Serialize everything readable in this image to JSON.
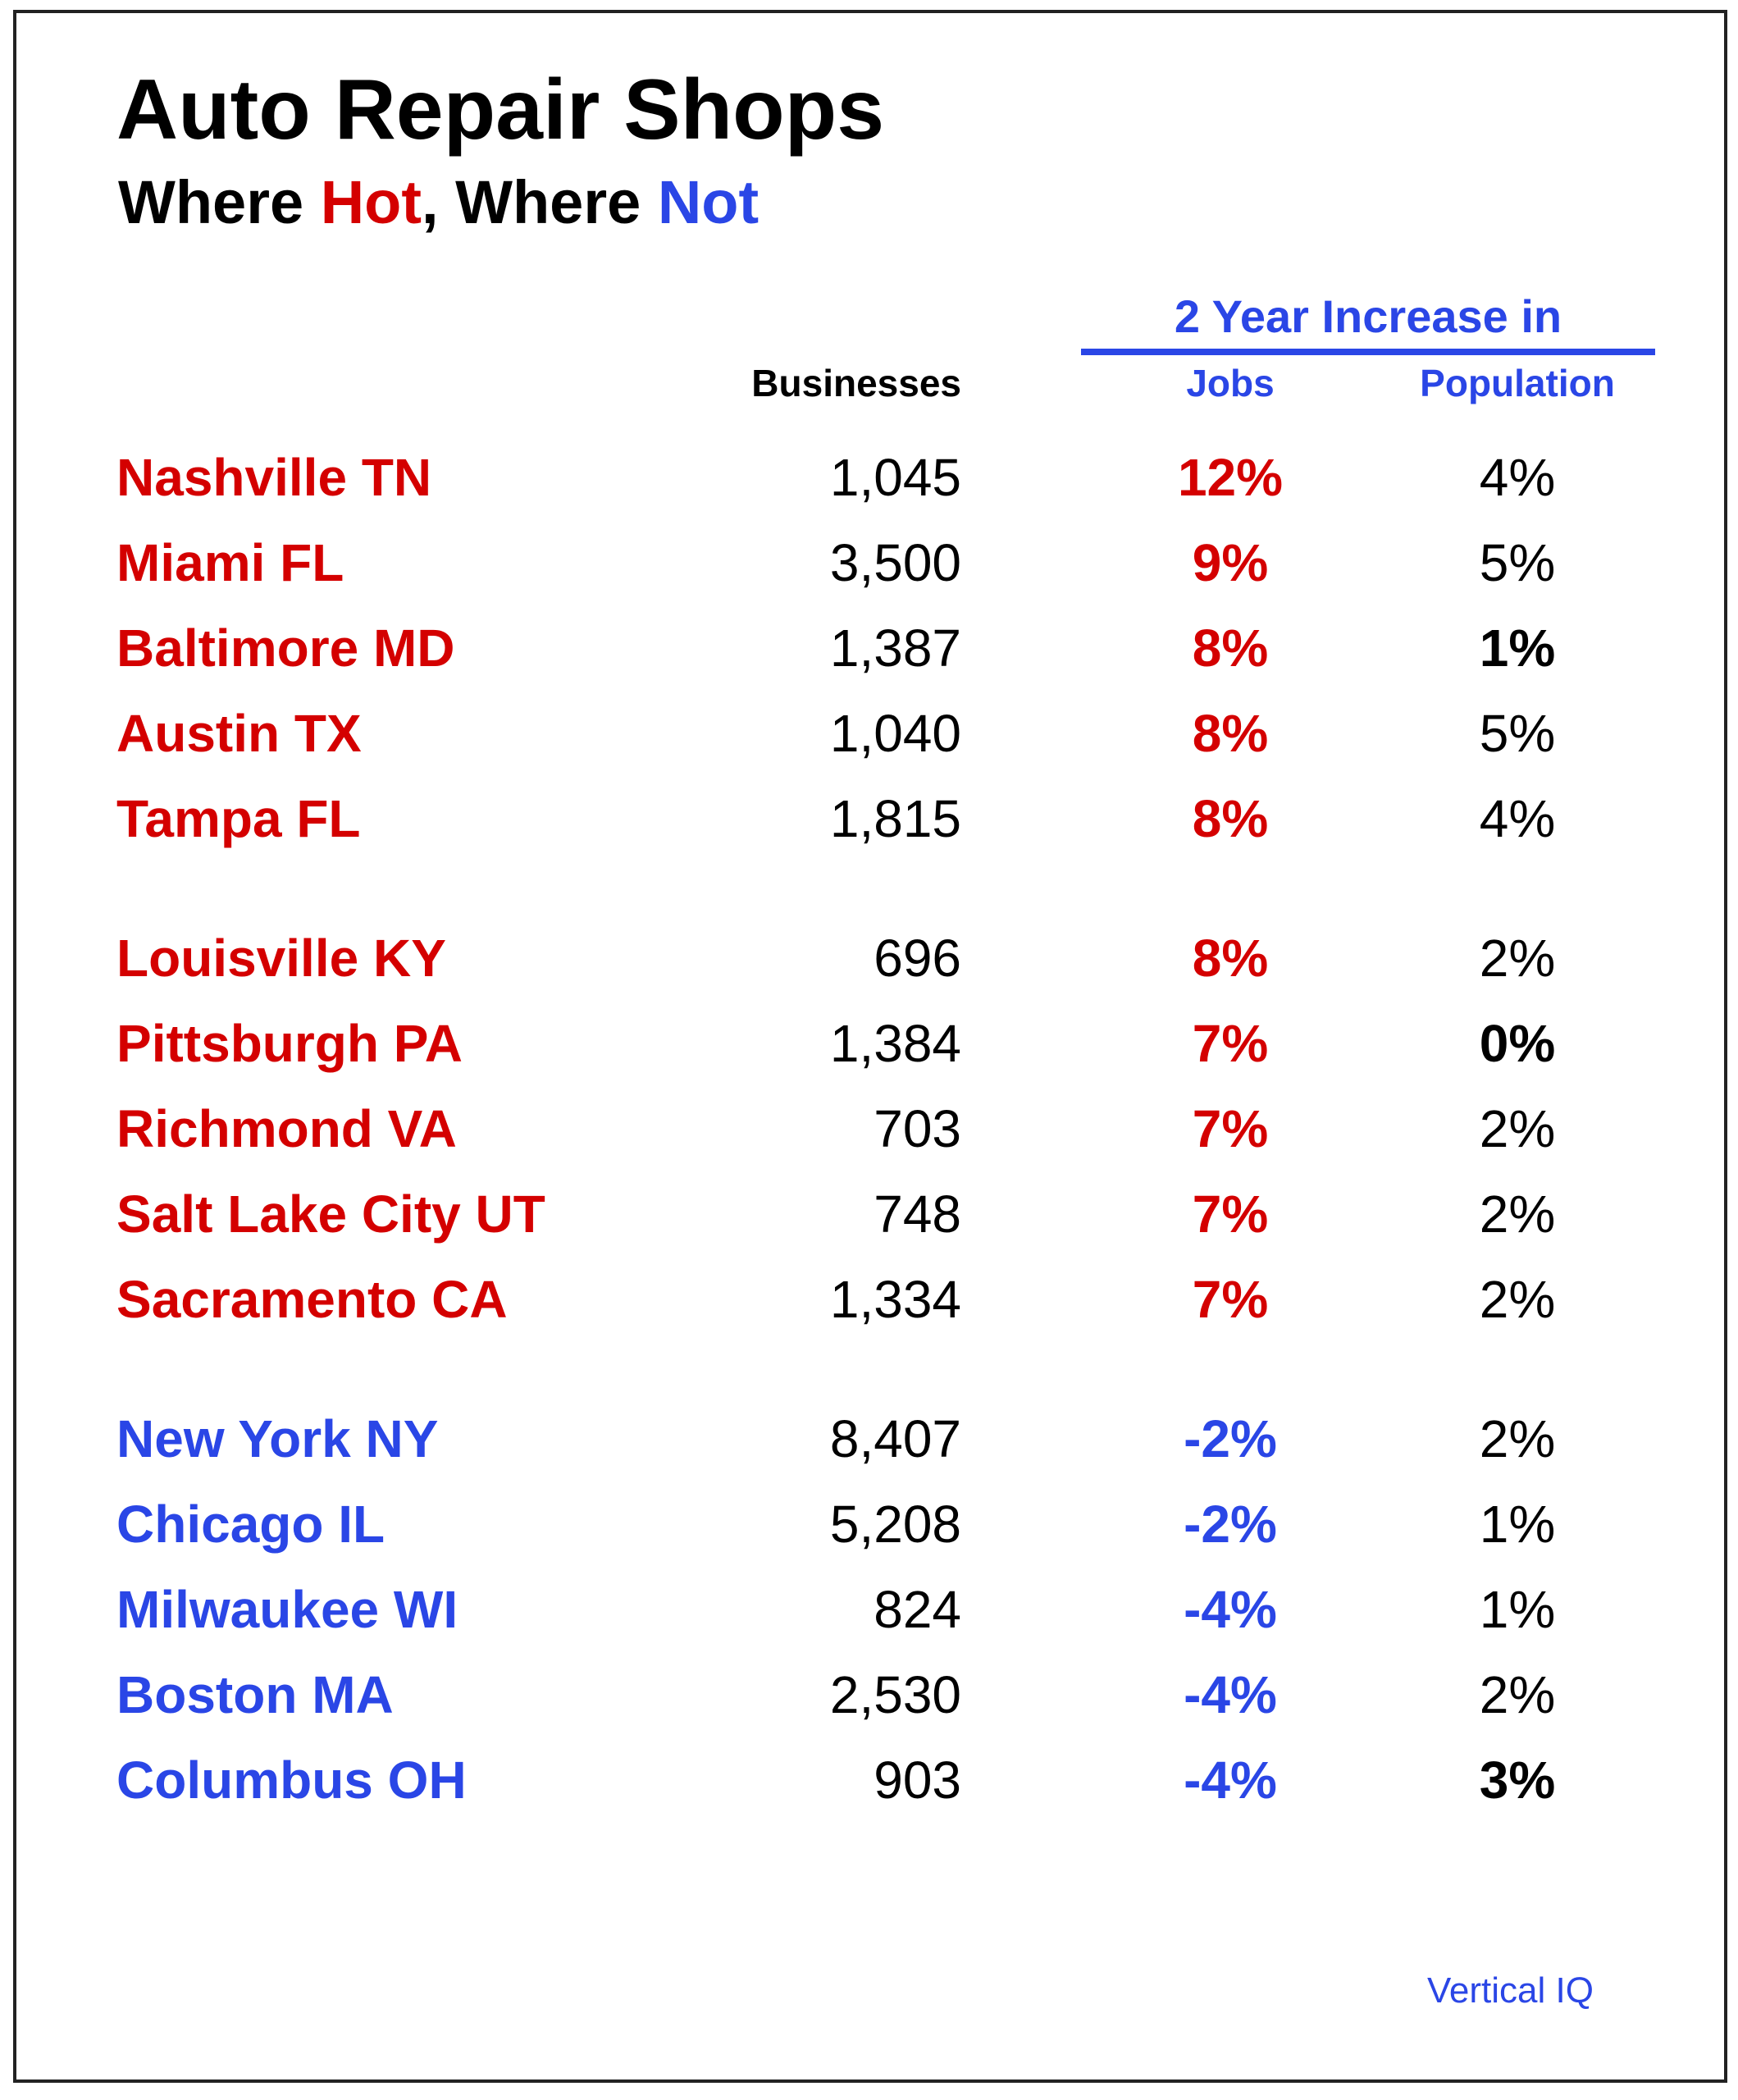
{
  "title": "Auto Repair Shops",
  "subtitle": {
    "part1": "Where ",
    "hot": "Hot",
    "part2": ", Where ",
    "not": "Not"
  },
  "table": {
    "group_header": "2 Year Increase in",
    "columns": {
      "businesses": "Businesses",
      "jobs": "Jobs",
      "population": "Population"
    },
    "rows": [
      {
        "city": "Nashville TN",
        "businesses": "1,045",
        "jobs": "12%",
        "population": "4%",
        "group": "hot",
        "pop_emphasis": false
      },
      {
        "city": "Miami FL",
        "businesses": "3,500",
        "jobs": "9%",
        "population": "5%",
        "group": "hot",
        "pop_emphasis": false
      },
      {
        "city": "Baltimore MD",
        "businesses": "1,387",
        "jobs": "8%",
        "population": "1%",
        "group": "hot",
        "pop_emphasis": true
      },
      {
        "city": "Austin TX",
        "businesses": "1,040",
        "jobs": "8%",
        "population": "5%",
        "group": "hot",
        "pop_emphasis": false
      },
      {
        "city": "Tampa FL",
        "businesses": "1,815",
        "jobs": "8%",
        "population": "4%",
        "group": "hot",
        "pop_emphasis": false
      },
      {
        "city": "Louisville KY",
        "businesses": "696",
        "jobs": "8%",
        "population": "2%",
        "group": "hot",
        "pop_emphasis": false
      },
      {
        "city": "Pittsburgh PA",
        "businesses": "1,384",
        "jobs": "7%",
        "population": "0%",
        "group": "hot",
        "pop_emphasis": true
      },
      {
        "city": "Richmond VA",
        "businesses": "703",
        "jobs": "7%",
        "population": "2%",
        "group": "hot",
        "pop_emphasis": false
      },
      {
        "city": "Salt Lake City UT",
        "businesses": "748",
        "jobs": "7%",
        "population": "2%",
        "group": "hot",
        "pop_emphasis": false
      },
      {
        "city": "Sacramento CA",
        "businesses": "1,334",
        "jobs": "7%",
        "population": "2%",
        "group": "hot",
        "pop_emphasis": false
      },
      {
        "city": "New York NY",
        "businesses": "8,407",
        "jobs": "-2%",
        "population": "2%",
        "group": "not",
        "pop_emphasis": false
      },
      {
        "city": "Chicago IL",
        "businesses": "5,208",
        "jobs": "-2%",
        "population": "1%",
        "group": "not",
        "pop_emphasis": false
      },
      {
        "city": "Milwaukee WI",
        "businesses": "824",
        "jobs": "-4%",
        "population": "1%",
        "group": "not",
        "pop_emphasis": false
      },
      {
        "city": "Boston MA",
        "businesses": "2,530",
        "jobs": "-4%",
        "population": "2%",
        "group": "not",
        "pop_emphasis": false
      },
      {
        "city": "Columbus OH",
        "businesses": "903",
        "jobs": "-4%",
        "population": "3%",
        "group": "not",
        "pop_emphasis": true
      }
    ]
  },
  "source": "Vertical IQ",
  "colors": {
    "hot": "#d40000",
    "not": "#2a46e6",
    "text": "#000000"
  }
}
